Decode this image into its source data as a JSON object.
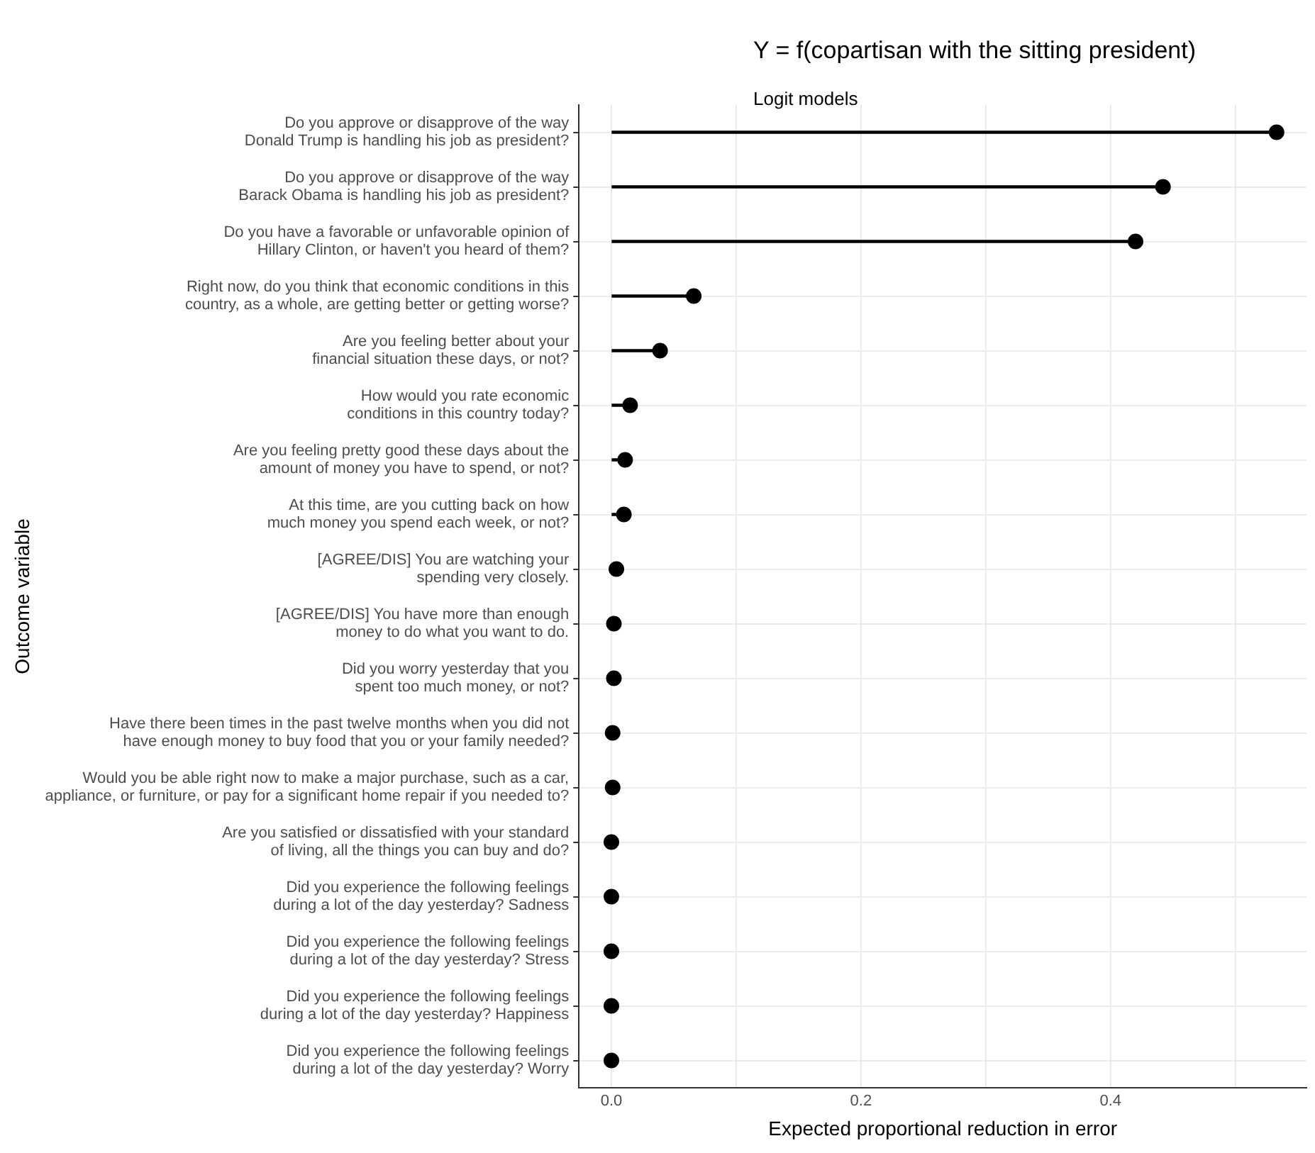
{
  "chart_data": {
    "type": "lollipop",
    "orientation": "horizontal",
    "title": "Y = f(copartisan with the sitting president)",
    "subtitle": "Logit models",
    "xlabel": "Expected proportional reduction in error",
    "ylabel": "Outcome variable",
    "categories": [
      "Do you approve or disapprove of the way\nDonald Trump is handling his job as president?",
      "Do you approve or disapprove of the way\nBarack Obama is handling his job as president?",
      "Do you have a favorable or unfavorable opinion of\nHillary Clinton, or haven't you heard of them?",
      "Right now, do you think that economic conditions in this\ncountry, as a whole, are getting better or getting worse?",
      "Are you feeling better about your\nfinancial situation these days, or not?",
      "How would you rate economic\nconditions in this country today?",
      "Are you feeling pretty good these days about the\namount of money you have to spend, or not?",
      "At this time, are you cutting back on how\nmuch money you spend each week, or not?",
      "[AGREE/DIS] You are watching your\nspending very closely.",
      "[AGREE/DIS] You have more than enough\nmoney to do what you want to do.",
      "Did you worry yesterday that you\nspent too much money, or not?",
      "Have there been times in the past twelve months when you did not\nhave enough money to buy food that you or your family needed?",
      "Would you be able right now to make a major purchase, such as a car,\nappliance, or furniture, or pay for a significant home repair if you needed to?",
      "Are you satisfied or dissatisfied with your standard\nof living, all the things you can buy and do?",
      "Did you experience the following feelings\nduring a lot of the day yesterday? Sadness",
      "Did you experience the following feelings\nduring a lot of the day yesterday? Stress",
      "Did you experience the following feelings\nduring a lot of the day yesterday? Happiness",
      "Did you experience the following feelings\nduring a lot of the day yesterday? Worry"
    ],
    "values": [
      0.533,
      0.442,
      0.42,
      0.066,
      0.039,
      0.015,
      0.011,
      0.01,
      0.004,
      0.002,
      0.002,
      0.001,
      0.001,
      0,
      0,
      0,
      0,
      0
    ],
    "color": "#000000",
    "marker": "circle",
    "grid": true,
    "legend": false,
    "xlim": [
      -0.026,
      0.557
    ],
    "xticks": [
      {
        "value": 0,
        "label": "0.0"
      },
      {
        "value": 0.1,
        "label": null
      },
      0.2,
      {
        "value": 0.3,
        "label": null
      },
      0.4,
      {
        "value": 0.5,
        "label": null
      }
    ]
  }
}
